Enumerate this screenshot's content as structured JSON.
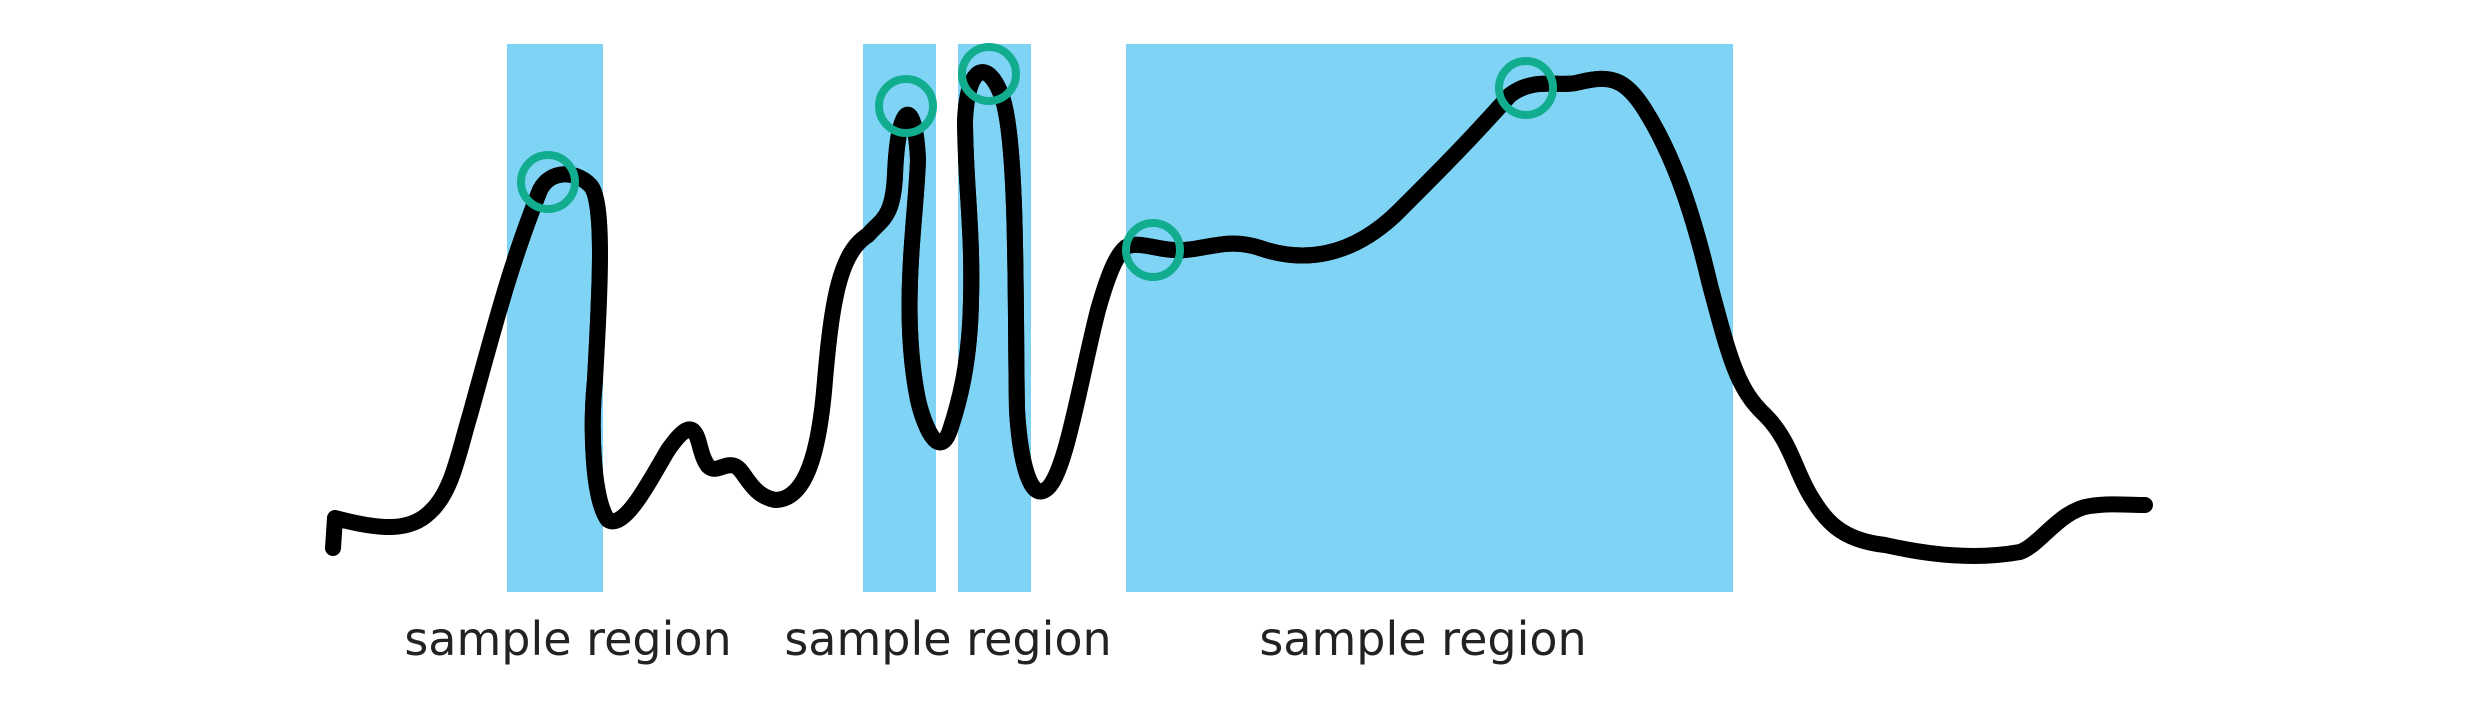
{
  "labels": {
    "region_1": "sample region",
    "region_2": "sample region",
    "region_3": "sample region"
  },
  "colors": {
    "region_fill": "#7fd4f6",
    "signal": "#000000",
    "signal_in_region": "#3e7d98",
    "peak_marker": "#11ad8e"
  }
}
